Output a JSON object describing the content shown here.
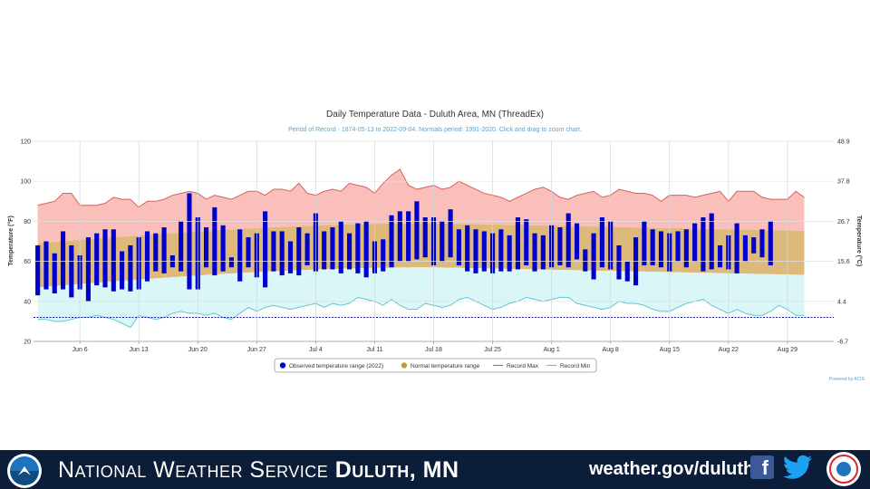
{
  "chart_data": {
    "type": "bar",
    "title": "Daily Temperature Data - Duluth Area, MN (ThreadEx)",
    "subtitle": "Period of Record - 1874-05-13 to 2022-09-04. Normals period: 1991-2020. Click and drag to zoom chart.",
    "ylabel_left": "Temperature (°F)",
    "ylabel_right": "Temperature (°C)",
    "ylim": [
      20,
      120
    ],
    "yticks_left": [
      20,
      40,
      60,
      80,
      100,
      120
    ],
    "yticks_right": [
      "-6.7",
      "4.4",
      "15.6",
      "26.7",
      "37.8",
      "48.9"
    ],
    "yticks_right_f": [
      20,
      40,
      60,
      80,
      100,
      120
    ],
    "x_start": "Jun 1",
    "x_count": 95,
    "xtick_labels": [
      "Jun 6",
      "Jun 13",
      "Jun 20",
      "Jun 27",
      "Jul 4",
      "Jul 11",
      "Jul 18",
      "Jul 25",
      "Aug 1",
      "Aug 8",
      "Aug 15",
      "Aug 22",
      "Aug 29"
    ],
    "xtick_index": [
      5,
      12,
      19,
      26,
      33,
      40,
      47,
      54,
      61,
      68,
      75,
      82,
      89
    ],
    "grid": true,
    "legend_placement": "bottom-center",
    "threshold_line": 32,
    "series": [
      {
        "name": "Observed temperature range (2022)",
        "color": "#0000cc",
        "high": [
          68,
          70,
          64,
          75,
          68,
          63,
          72,
          74,
          76,
          76,
          65,
          68,
          72,
          75,
          74,
          77,
          63,
          80,
          94,
          82,
          77,
          87,
          78,
          62,
          76,
          72,
          74,
          85,
          75,
          75,
          70,
          77,
          74,
          84,
          75,
          77,
          80,
          74,
          79,
          80,
          70,
          71,
          83,
          85,
          85,
          90,
          82,
          82,
          80,
          86,
          76,
          78,
          76,
          75,
          74,
          76,
          73,
          82,
          81,
          74,
          73,
          78,
          77,
          84,
          79,
          66,
          74,
          82,
          80,
          68,
          60,
          72,
          80,
          76,
          75,
          74,
          75,
          76,
          79,
          82,
          84,
          68,
          73,
          79,
          73,
          72,
          76,
          80
        ],
        "low": [
          43,
          46,
          44,
          46,
          42,
          46,
          40,
          48,
          47,
          45,
          46,
          45,
          46,
          50,
          55,
          54,
          57,
          55,
          46,
          46,
          57,
          53,
          55,
          57,
          50,
          57,
          52,
          47,
          55,
          53,
          54,
          53,
          58,
          55,
          56,
          56,
          54,
          56,
          54,
          52,
          54,
          55,
          57,
          60,
          60,
          61,
          62,
          58,
          60,
          62,
          58,
          55,
          54,
          55,
          54,
          55,
          55,
          56,
          58,
          55,
          56,
          57,
          58,
          57,
          61,
          55,
          51,
          57,
          56,
          51,
          50,
          48,
          58,
          58,
          57,
          55,
          60,
          57,
          60,
          55,
          56,
          57,
          56,
          54,
          60,
          64,
          62,
          58
        ]
      },
      {
        "name": "Normal temperature range",
        "color": "#c49a3c",
        "high_start": 69,
        "high_peak": 79,
        "high_end": 75,
        "low_start": 47,
        "low_peak": 57,
        "low_end": 53
      },
      {
        "name": "Record Max",
        "color": "#d95f5f",
        "values": [
          88,
          89,
          90,
          94,
          94,
          88,
          88,
          88,
          89,
          92,
          91,
          91,
          87,
          90,
          90,
          91,
          93,
          94,
          95,
          94,
          91,
          93,
          92,
          91,
          93,
          95,
          95,
          93,
          96,
          96,
          95,
          99,
          94,
          93,
          95,
          96,
          95,
          99,
          98,
          97,
          94,
          99,
          103,
          106,
          98,
          96,
          97,
          98,
          96,
          97,
          100,
          98,
          96,
          94,
          93,
          92,
          90,
          92,
          94,
          96,
          97,
          95,
          92,
          91,
          93,
          94,
          95,
          92,
          93,
          96,
          95,
          94,
          94,
          93,
          90,
          93,
          93,
          93,
          92,
          93,
          94,
          95,
          90,
          95,
          95,
          95,
          92,
          91,
          91,
          91,
          95,
          92
        ],
        "extrema_note": ""
      },
      {
        "name": "Record Min",
        "color": "#5fc6d1",
        "values": [
          31,
          31,
          30,
          30,
          31,
          32,
          32,
          33,
          32,
          31,
          29,
          27,
          33,
          32,
          31,
          32,
          34,
          35,
          34,
          34,
          33,
          34,
          32,
          31,
          34,
          37,
          35,
          37,
          38,
          37,
          36,
          37,
          38,
          39,
          37,
          39,
          38,
          39,
          42,
          41,
          40,
          38,
          41,
          38,
          36,
          36,
          39,
          38,
          37,
          38,
          41,
          42,
          40,
          38,
          36,
          37,
          39,
          40,
          42,
          41,
          40,
          41,
          42,
          42,
          39,
          38,
          37,
          36,
          37,
          40,
          39,
          39,
          38,
          36,
          35,
          35,
          37,
          39,
          40,
          41,
          38,
          36,
          34,
          36,
          34,
          33,
          33,
          35,
          38,
          36,
          33,
          33
        ],
        "extrema_note": ""
      }
    ]
  },
  "credit": "Powered by ACIS",
  "footer": {
    "agency": "National Weather Service",
    "office": "Duluth, MN",
    "site": "weather.gov/duluth"
  },
  "colors": {
    "record_band": "#f9b8b4",
    "normal_band": "#d9b26e",
    "low_band": "#d9f5f7",
    "threshold": "#1a1a9a",
    "footer_bg": "#0b1d38"
  }
}
